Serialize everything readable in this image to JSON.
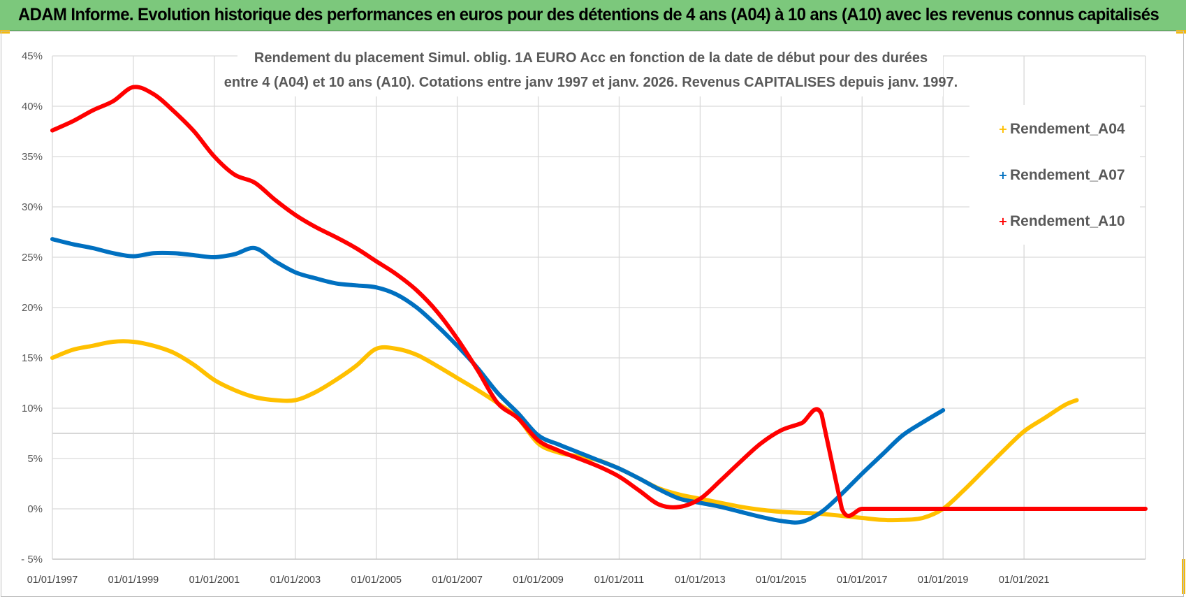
{
  "header": {
    "title": "ADAM Informe. Evolution historique des performances en euros pour des détentions de 4 ans (A04) à 10 ans (A10) avec les revenus connus capitalisés"
  },
  "colors": {
    "banner": "#7cc87c",
    "A04": "#ffc000",
    "A07": "#0070c0",
    "A10": "#ff0000"
  },
  "chart_data": {
    "type": "line",
    "title_line1": "Rendement du placement Simul. oblig. 1A EURO Acc en fonction de la date de début pour des durées",
    "title_line2": "entre 4 (A04) et 10 ans (A10). Cotations entre janv 1997 et janv. 2026. Revenus CAPITALISES depuis janv. 1997.",
    "xlabel": "",
    "ylabel": "",
    "xlim": [
      1997.0,
      2024.0
    ],
    "ylim": [
      -5,
      45
    ],
    "y_ticks": [
      -5,
      0,
      5,
      10,
      15,
      20,
      25,
      30,
      35,
      40,
      45
    ],
    "y_tick_labels": [
      "- 5%",
      "0%",
      "5%",
      "10%",
      "15%",
      "20%",
      "25%",
      "30%",
      "35%",
      "40%",
      "45%"
    ],
    "x_tick_labels": [
      "01/01/1997",
      "01/01/1999",
      "01/01/2001",
      "01/01/2003",
      "01/01/2005",
      "01/01/2007",
      "01/01/2009",
      "01/01/2011",
      "01/01/2013",
      "01/01/2015",
      "01/01/2017",
      "01/01/2019",
      "01/01/2021"
    ],
    "x_ticks": [
      1997,
      1999,
      2001,
      2003,
      2005,
      2007,
      2009,
      2011,
      2013,
      2015,
      2017,
      2019,
      2021
    ],
    "grid": true,
    "legend_position": "top-right",
    "series": [
      {
        "name": "Rendement_A04",
        "x": [
          1997.0,
          1997.5,
          1998.0,
          1998.5,
          1999.0,
          1999.5,
          2000.0,
          2000.5,
          2001.0,
          2001.5,
          2002.0,
          2002.5,
          2003.0,
          2003.5,
          2004.0,
          2004.5,
          2005.0,
          2005.5,
          2006.0,
          2006.5,
          2007.0,
          2007.5,
          2008.0,
          2008.5,
          2009.0,
          2009.5,
          2010.0,
          2010.5,
          2011.0,
          2011.5,
          2012.0,
          2012.5,
          2013.0,
          2013.5,
          2014.0,
          2014.5,
          2015.0,
          2015.5,
          2016.0,
          2016.5,
          2017.0,
          2017.5,
          2018.0,
          2018.5,
          2019.0,
          2019.5,
          2020.0,
          2020.5,
          2021.0,
          2021.5,
          2022.0,
          2022.3
        ],
        "y": [
          15.0,
          15.8,
          16.2,
          16.6,
          16.6,
          16.2,
          15.5,
          14.3,
          12.8,
          11.8,
          11.1,
          10.8,
          10.8,
          11.6,
          12.8,
          14.2,
          15.9,
          15.9,
          15.3,
          14.2,
          13.0,
          11.8,
          10.5,
          9.0,
          6.5,
          5.6,
          5.2,
          4.8,
          4.0,
          3.0,
          2.0,
          1.4,
          1.0,
          0.6,
          0.2,
          -0.1,
          -0.3,
          -0.4,
          -0.5,
          -0.7,
          -0.9,
          -1.1,
          -1.1,
          -0.9,
          0.0,
          1.8,
          3.8,
          5.8,
          7.7,
          9.0,
          10.3,
          10.8
        ]
      },
      {
        "name": "Rendement_A07",
        "x": [
          1997.0,
          1997.5,
          1998.0,
          1998.5,
          1999.0,
          1999.5,
          2000.0,
          2000.5,
          2001.0,
          2001.5,
          2002.0,
          2002.5,
          2003.0,
          2003.5,
          2004.0,
          2004.5,
          2005.0,
          2005.5,
          2006.0,
          2006.5,
          2007.0,
          2007.5,
          2008.0,
          2008.5,
          2009.0,
          2009.5,
          2010.0,
          2010.5,
          2011.0,
          2011.5,
          2012.0,
          2012.5,
          2013.0,
          2013.5,
          2014.0,
          2014.5,
          2015.0,
          2015.5,
          2016.0,
          2016.5,
          2017.0,
          2017.5,
          2018.0,
          2018.5,
          2019.0
        ],
        "y": [
          26.8,
          26.3,
          25.9,
          25.4,
          25.1,
          25.4,
          25.4,
          25.2,
          25.0,
          25.3,
          25.9,
          24.6,
          23.5,
          22.9,
          22.4,
          22.2,
          22.0,
          21.3,
          20.0,
          18.2,
          16.2,
          14.0,
          11.5,
          9.5,
          7.3,
          6.4,
          5.6,
          4.8,
          4.0,
          3.0,
          1.9,
          1.0,
          0.6,
          0.2,
          -0.3,
          -0.8,
          -1.2,
          -1.3,
          -0.3,
          1.5,
          3.5,
          5.4,
          7.3,
          8.6,
          9.8
        ]
      },
      {
        "name": "Rendement_A10",
        "x": [
          1997.0,
          1997.5,
          1998.0,
          1998.5,
          1999.0,
          1999.5,
          2000.0,
          2000.5,
          2001.0,
          2001.5,
          2002.0,
          2002.5,
          2003.0,
          2003.5,
          2004.0,
          2004.5,
          2005.0,
          2005.5,
          2006.0,
          2006.5,
          2007.0,
          2007.5,
          2008.0,
          2008.5,
          2009.0,
          2009.5,
          2010.0,
          2010.5,
          2011.0,
          2011.5,
          2012.0,
          2012.5,
          2013.0,
          2013.5,
          2014.0,
          2014.5,
          2015.0,
          2015.5,
          2016.0,
          2016.5,
          2017.0,
          2017.5,
          2018.0,
          2018.5,
          2019.0,
          2019.5,
          2020.0,
          2020.5,
          2021.0,
          2021.5,
          2022.0,
          2022.5,
          2023.0,
          2023.5,
          2024.0
        ],
        "y": [
          37.6,
          38.5,
          39.6,
          40.5,
          41.9,
          41.2,
          39.5,
          37.5,
          35.0,
          33.2,
          32.4,
          30.7,
          29.2,
          28.0,
          27.0,
          25.9,
          24.6,
          23.3,
          21.7,
          19.6,
          16.9,
          13.8,
          10.5,
          9.0,
          6.8,
          5.8,
          5.0,
          4.2,
          3.2,
          1.8,
          0.4,
          0.2,
          1.0,
          2.8,
          4.7,
          6.5,
          7.8,
          8.5,
          9.4,
          0.0,
          0.0,
          0.0,
          0.0,
          0.0,
          0.0,
          0.0,
          0.0,
          0.0,
          0.0,
          0.0,
          0.0,
          0.0,
          0.0,
          0.0,
          0.0
        ]
      }
    ]
  }
}
